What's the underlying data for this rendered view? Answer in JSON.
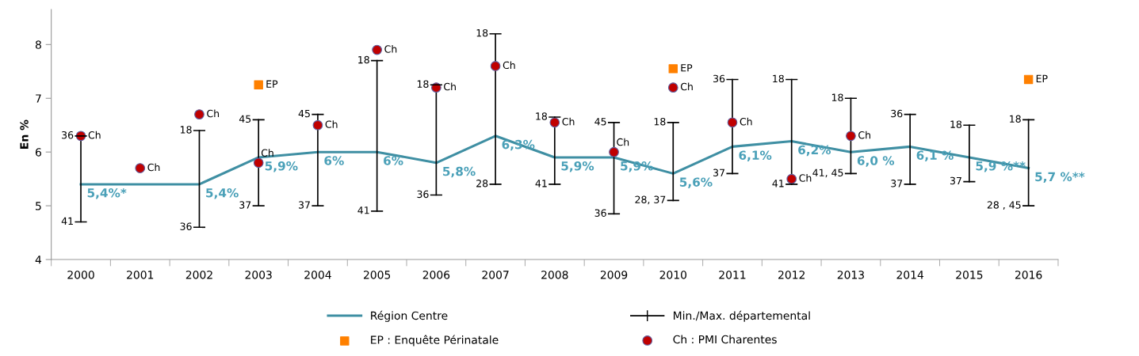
{
  "chart_data": {
    "type": "line",
    "ylabel": "En %",
    "categories": [
      "2000",
      "2001",
      "2002",
      "2003",
      "2004",
      "2005",
      "2006",
      "2007",
      "2008",
      "2009",
      "2010",
      "2011",
      "2012",
      "2013",
      "2014",
      "2015",
      "2016"
    ],
    "series": [
      {
        "name": "Région Centre",
        "color": "#3f8fa3",
        "marker": "none",
        "values": [
          5.4,
          5.4,
          5.4,
          5.9,
          6.0,
          6.0,
          5.8,
          6.3,
          5.9,
          5.9,
          5.6,
          6.1,
          6.2,
          6.0,
          6.1,
          5.9,
          5.7
        ],
        "value_labels": [
          "5,4%*",
          null,
          "5,4%",
          "5,9%",
          "6%",
          "6%",
          "5,8%",
          "6,3%",
          "5,9%",
          "5,9%",
          "5,6%",
          "6,1%",
          "6,2%",
          "6,0 %",
          "6,1 %",
          "5,9 %**",
          "5,7 %**"
        ],
        "errors": [
          [
            4.7,
            6.3
          ],
          null,
          [
            4.6,
            6.4
          ],
          [
            5.0,
            6.6
          ],
          [
            5.0,
            6.7
          ],
          [
            4.9,
            7.7
          ],
          [
            5.2,
            7.25
          ],
          [
            5.4,
            8.2
          ],
          [
            5.4,
            6.65
          ],
          [
            4.85,
            6.55
          ],
          [
            5.1,
            6.55
          ],
          [
            5.6,
            7.35
          ],
          [
            5.4,
            7.35
          ],
          [
            5.6,
            7.0
          ],
          [
            5.4,
            6.7
          ],
          [
            5.45,
            6.5
          ],
          [
            5.0,
            6.6
          ]
        ]
      },
      {
        "name": "EP : Enquête Périnatale",
        "type": "scatter",
        "color": "#ff8000",
        "marker": "square",
        "values": [
          null,
          null,
          null,
          7.25,
          null,
          null,
          null,
          null,
          null,
          null,
          7.55,
          null,
          null,
          null,
          null,
          null,
          7.35
        ],
        "value_labels": [
          null,
          null,
          null,
          "EP",
          null,
          null,
          null,
          null,
          null,
          null,
          "EP",
          null,
          null,
          null,
          null,
          null,
          "EP"
        ]
      },
      {
        "name": "Ch : PMI Charentes",
        "type": "scatter",
        "color": "#c00000",
        "marker": "circle",
        "values": [
          6.3,
          5.7,
          6.7,
          5.8,
          6.5,
          7.9,
          7.2,
          7.6,
          6.55,
          6.0,
          7.2,
          6.55,
          5.5,
          6.3,
          null,
          null,
          null
        ],
        "value_labels": [
          "Ch",
          "Ch",
          "Ch",
          "Ch",
          "Ch",
          "Ch",
          "Ch",
          "Ch",
          "Ch",
          "Ch",
          "Ch",
          "Ch",
          "Ch",
          "Ch",
          null,
          null,
          null
        ]
      }
    ],
    "annotations": [
      "Min./Max. départemental",
      {
        "text": "36",
        "x": "2000",
        "y": 6.3
      },
      {
        "text": "41",
        "x": "2000",
        "y": 4.7
      },
      {
        "text": "18",
        "x": "2002",
        "y": 6.4
      },
      {
        "text": "36",
        "x": "2002",
        "y": 4.6
      },
      {
        "text": "45",
        "x": "2003",
        "y": 6.6
      },
      {
        "text": "37",
        "x": "2003",
        "y": 5.0
      },
      {
        "text": "45",
        "x": "2004",
        "y": 6.7
      },
      {
        "text": "37",
        "x": "2004",
        "y": 5.0
      },
      {
        "text": "18",
        "x": "2005",
        "y": 7.7
      },
      {
        "text": "41",
        "x": "2005",
        "y": 4.9
      },
      {
        "text": "18",
        "x": "2006",
        "y": 7.25
      },
      {
        "text": "36",
        "x": "2006",
        "y": 5.2
      },
      {
        "text": "18",
        "x": "2007",
        "y": 8.2
      },
      {
        "text": "28",
        "x": "2007",
        "y": 5.4
      },
      {
        "text": "18",
        "x": "2008",
        "y": 6.65
      },
      {
        "text": "41",
        "x": "2008",
        "y": 5.4
      },
      {
        "text": "45",
        "x": "2009",
        "y": 6.55
      },
      {
        "text": "36",
        "x": "2009",
        "y": 4.85
      },
      {
        "text": "18",
        "x": "2010",
        "y": 6.55
      },
      {
        "text": "28, 37",
        "x": "2010",
        "y": 5.1
      },
      {
        "text": "36",
        "x": "2011",
        "y": 7.35
      },
      {
        "text": "37",
        "x": "2011",
        "y": 5.6
      },
      {
        "text": "18",
        "x": "2012",
        "y": 7.35
      },
      {
        "text": "41",
        "x": "2012",
        "y": 5.4
      },
      {
        "text": "18",
        "x": "2013",
        "y": 7.0
      },
      {
        "text": "41, 45",
        "x": "2013",
        "y": 5.6
      },
      {
        "text": "36",
        "x": "2014",
        "y": 6.7
      },
      {
        "text": "37",
        "x": "2014",
        "y": 5.4
      },
      {
        "text": "18",
        "x": "2015",
        "y": 6.5
      },
      {
        "text": "37",
        "x": "2015",
        "y": 5.45
      },
      {
        "text": "18",
        "x": "2016",
        "y": 6.6
      },
      {
        "text": "28 , 45",
        "x": "2016",
        "y": 5.0
      }
    ],
    "ylim": [
      4,
      8.65
    ],
    "yticks": [
      4,
      5,
      6,
      7,
      8
    ],
    "grid": false,
    "legend": "bottom"
  }
}
